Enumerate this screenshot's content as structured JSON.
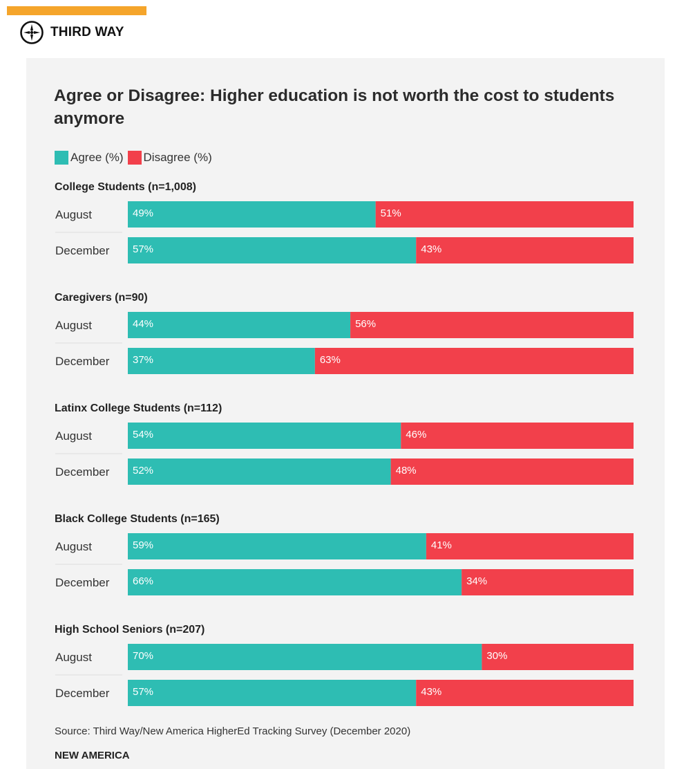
{
  "brand": {
    "name": "THIRD WAY",
    "icon": "compass-icon",
    "accent_color": "#f5a52b"
  },
  "colors": {
    "agree": "#2ebdb3",
    "disagree": "#f2404b",
    "panel": "#f3f3f3"
  },
  "legend": {
    "agree_label": "Agree (%)",
    "disagree_label": "Disagree (%)",
    "placement": "top-left"
  },
  "chart_data": {
    "type": "bar",
    "orientation": "horizontal",
    "stacked": true,
    "title": "Agree or Disagree: Higher education is not worth the cost to students anymore",
    "series": [
      {
        "name": "Agree (%)",
        "key": "agree"
      },
      {
        "name": "Disagree (%)",
        "key": "disagree"
      }
    ],
    "groups": [
      {
        "label": "College Students (n=1,008)",
        "rows": [
          {
            "label": "August",
            "agree": 49,
            "disagree": 51,
            "agree_label": "49%",
            "disagree_label": "51%"
          },
          {
            "label": "December",
            "agree": 57,
            "disagree": 43,
            "agree_label": "57%",
            "disagree_label": "43%"
          }
        ]
      },
      {
        "label": "Caregivers (n=90)",
        "rows": [
          {
            "label": "August",
            "agree": 44,
            "disagree": 56,
            "agree_label": "44%",
            "disagree_label": "56%"
          },
          {
            "label": "December",
            "agree": 37,
            "disagree": 63,
            "agree_label": "37%",
            "disagree_label": "63%"
          }
        ]
      },
      {
        "label": "Latinx College Students (n=112)",
        "rows": [
          {
            "label": "August",
            "agree": 54,
            "disagree": 46,
            "agree_label": "54%",
            "disagree_label": "46%"
          },
          {
            "label": "December",
            "agree": 52,
            "disagree": 48,
            "agree_label": "52%",
            "disagree_label": "48%"
          }
        ]
      },
      {
        "label": "Black College Students (n=165)",
        "rows": [
          {
            "label": "August",
            "agree": 59,
            "disagree": 41,
            "agree_label": "59%",
            "disagree_label": "41%"
          },
          {
            "label": "December",
            "agree": 66,
            "disagree": 34,
            "agree_label": "66%",
            "disagree_label": "34%"
          }
        ]
      },
      {
        "label": "High School Seniors (n=207)",
        "rows": [
          {
            "label": "August",
            "agree": 70,
            "disagree": 30,
            "agree_label": "70%",
            "disagree_label": "30%"
          },
          {
            "label": "December",
            "agree": 57,
            "disagree": 43,
            "agree_label": "57%",
            "disagree_label": "43%"
          }
        ]
      }
    ],
    "xlim": [
      0,
      100
    ],
    "grid": false
  },
  "footer": {
    "source": "Source: Third Way/New America HigherEd Tracking Survey (December 2020)",
    "publisher": "NEW AMERICA"
  }
}
